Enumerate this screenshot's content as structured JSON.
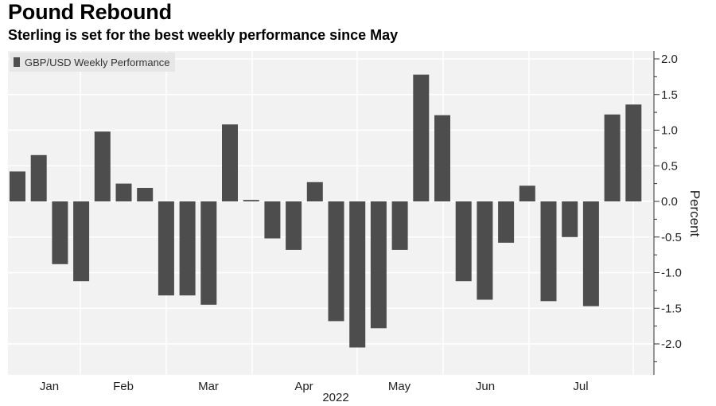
{
  "header": {
    "title": "Pound Rebound",
    "subtitle": "Sterling is set for the best weekly performance since May"
  },
  "chart_data": {
    "type": "bar",
    "series": [
      {
        "name": "GBP/USD Weekly Performance",
        "color": "#4d4d4d",
        "values": [
          0.42,
          0.65,
          -0.88,
          -1.12,
          0.98,
          0.25,
          0.19,
          -1.32,
          -1.32,
          -1.45,
          1.08,
          0.02,
          -0.52,
          -0.68,
          0.27,
          -1.68,
          -2.05,
          -1.78,
          -0.68,
          1.78,
          1.21,
          -1.12,
          -1.38,
          -0.58,
          0.22,
          -1.4,
          -0.5,
          -1.47,
          1.22,
          1.36
        ]
      }
    ],
    "x_tick_labels": [
      "Jan",
      "Feb",
      "Mar",
      "Apr",
      "May",
      "Jun",
      "Jul"
    ],
    "x_axis_year": "2022",
    "y_ticks": [
      "2.0",
      "1.5",
      "1.0",
      "0.5",
      "0.0",
      "-0.5",
      "-1.0",
      "-1.5",
      "-2.0"
    ],
    "y_tick_values": [
      2.0,
      1.5,
      1.0,
      0.5,
      0.0,
      -0.5,
      -1.0,
      -1.5,
      -2.0
    ],
    "ylabel": "Percent",
    "ylim": [
      -2.4,
      2.1
    ],
    "grid": true,
    "legend_position": "top-left",
    "y_axis_side": "right"
  }
}
